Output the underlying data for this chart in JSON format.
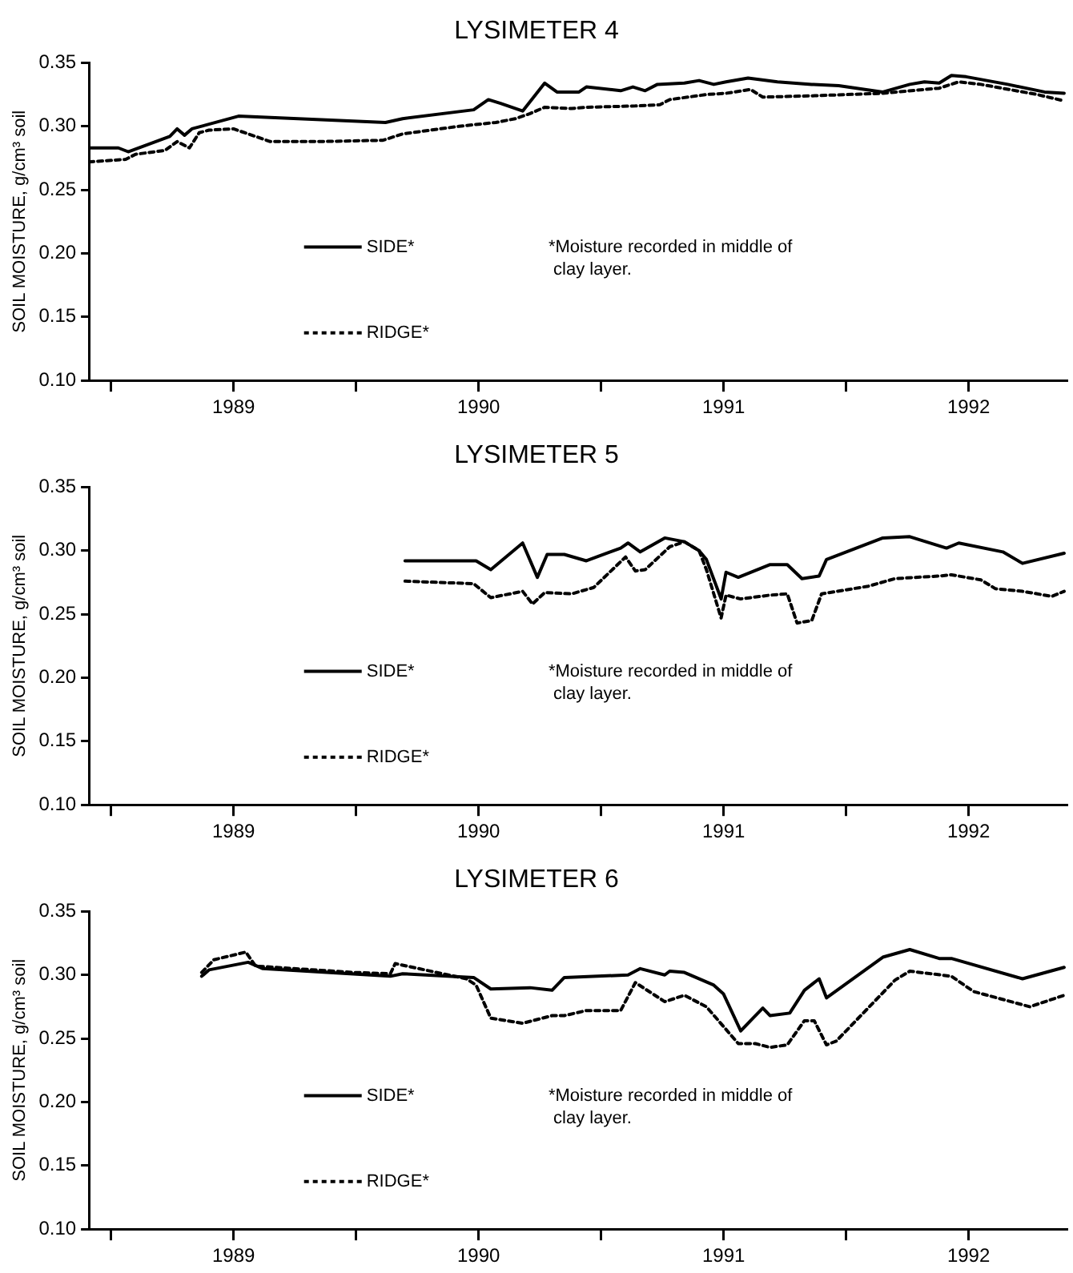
{
  "chart_data": [
    {
      "type": "line",
      "title": "LYSIMETER 4",
      "ylabel": "SOIL MOISTURE, g/cm³ soil",
      "legend": "left",
      "xlim": [
        1988.41,
        1992.4
      ],
      "xticks": [
        {
          "value": 1988.5,
          "label": null
        },
        1989,
        {
          "value": 1989.5,
          "label": null
        },
        1990,
        {
          "value": 1990.5,
          "label": null
        },
        1991,
        {
          "value": 1991.5,
          "label": null
        },
        1992
      ],
      "ylim": [
        0.1,
        0.35
      ],
      "yticks": [
        {
          "value": 0.1,
          "label": "0.10"
        },
        0.15,
        {
          "value": 0.2,
          "label": "0.20"
        },
        0.25,
        {
          "value": 0.3,
          "label": "0.30"
        },
        0.35
      ],
      "annotations": [
        "*Moisture recorded in middle of clay layer."
      ],
      "series": [
        {
          "name": "SIDE*",
          "color": "#000000",
          "line_style": "solid",
          "x": [
            1988.41,
            1988.53,
            1988.57,
            1988.74,
            1988.77,
            1988.8,
            1988.83,
            1989.02,
            1989.62,
            1989.69,
            1989.98,
            1990.04,
            1990.09,
            1990.18,
            1990.27,
            1990.32,
            1990.41,
            1990.44,
            1990.58,
            1990.63,
            1990.68,
            1990.73,
            1990.84,
            1990.9,
            1990.96,
            1991.01,
            1991.1,
            1991.22,
            1991.36,
            1991.47,
            1991.65,
            1991.76,
            1991.82,
            1991.88,
            1991.93,
            1991.99,
            1992.16,
            1992.31,
            1992.39
          ],
          "values": [
            0.283,
            0.283,
            0.28,
            0.292,
            0.298,
            0.293,
            0.298,
            0.308,
            0.303,
            0.306,
            0.313,
            0.321,
            0.318,
            0.312,
            0.334,
            0.327,
            0.327,
            0.331,
            0.328,
            0.331,
            0.328,
            0.333,
            0.334,
            0.336,
            0.333,
            0.335,
            0.338,
            0.335,
            0.333,
            0.332,
            0.327,
            0.333,
            0.335,
            0.334,
            0.34,
            0.339,
            0.333,
            0.327,
            0.326
          ]
        },
        {
          "name": "RIDGE*",
          "color": "#000000",
          "line_style": "dotted",
          "x": [
            1988.41,
            1988.56,
            1988.6,
            1988.72,
            1988.77,
            1988.82,
            1988.86,
            1988.9,
            1989.0,
            1989.06,
            1989.15,
            1989.35,
            1989.61,
            1989.69,
            1989.92,
            1990.07,
            1990.15,
            1990.21,
            1990.27,
            1990.38,
            1990.44,
            1990.64,
            1990.74,
            1990.78,
            1990.93,
            1991.01,
            1991.11,
            1991.16,
            1991.36,
            1991.65,
            1991.88,
            1991.96,
            1992.05,
            1992.28,
            1992.39
          ],
          "values": [
            0.272,
            0.274,
            0.278,
            0.281,
            0.288,
            0.283,
            0.295,
            0.297,
            0.298,
            0.294,
            0.288,
            0.288,
            0.289,
            0.294,
            0.3,
            0.303,
            0.306,
            0.31,
            0.315,
            0.314,
            0.315,
            0.316,
            0.317,
            0.321,
            0.325,
            0.326,
            0.329,
            0.323,
            0.324,
            0.326,
            0.33,
            0.335,
            0.333,
            0.325,
            0.32
          ]
        }
      ]
    },
    {
      "type": "line",
      "title": "LYSIMETER 5",
      "ylabel": "SOIL MOISTURE, g/cm³ soil",
      "legend": "left",
      "xlim": [
        1988.41,
        1992.4
      ],
      "xticks": [
        {
          "value": 1988.5,
          "label": null
        },
        1989,
        {
          "value": 1989.5,
          "label": null
        },
        1990,
        {
          "value": 1990.5,
          "label": null
        },
        1991,
        {
          "value": 1991.5,
          "label": null
        },
        1992
      ],
      "ylim": [
        0.1,
        0.35
      ],
      "yticks": [
        {
          "value": 0.1,
          "label": "0.10"
        },
        0.15,
        {
          "value": 0.2,
          "label": "0.20"
        },
        0.25,
        {
          "value": 0.3,
          "label": "0.30"
        },
        0.35
      ],
      "annotations": [
        "*Moisture recorded in middle of clay layer."
      ],
      "series": [
        {
          "name": "SIDE*",
          "color": "#000000",
          "line_style": "solid",
          "x": [
            1989.7,
            1989.99,
            1990.05,
            1990.18,
            1990.24,
            1990.28,
            1990.35,
            1990.44,
            1990.58,
            1990.61,
            1990.66,
            1990.76,
            1990.84,
            1990.9,
            1990.93,
            1990.99,
            1991.01,
            1991.06,
            1991.19,
            1991.26,
            1991.32,
            1991.39,
            1991.42,
            1991.65,
            1991.76,
            1991.91,
            1991.96,
            1992.14,
            1992.22,
            1992.39
          ],
          "values": [
            0.292,
            0.292,
            0.285,
            0.306,
            0.279,
            0.297,
            0.297,
            0.292,
            0.302,
            0.306,
            0.299,
            0.31,
            0.307,
            0.3,
            0.293,
            0.262,
            0.283,
            0.279,
            0.289,
            0.289,
            0.278,
            0.28,
            0.293,
            0.31,
            0.311,
            0.302,
            0.306,
            0.299,
            0.29,
            0.298
          ]
        },
        {
          "name": "RIDGE*",
          "color": "#000000",
          "line_style": "dotted",
          "x": [
            1989.7,
            1989.98,
            1990.05,
            1990.18,
            1990.22,
            1990.27,
            1990.38,
            1990.47,
            1990.6,
            1990.64,
            1990.68,
            1990.78,
            1990.84,
            1990.9,
            1990.93,
            1990.99,
            1991.01,
            1991.07,
            1991.19,
            1991.26,
            1991.3,
            1991.36,
            1991.4,
            1991.59,
            1991.7,
            1991.88,
            1991.93,
            1992.05,
            1992.11,
            1992.22,
            1992.34,
            1992.39
          ],
          "values": [
            0.276,
            0.274,
            0.263,
            0.268,
            0.258,
            0.267,
            0.266,
            0.271,
            0.295,
            0.284,
            0.285,
            0.303,
            0.307,
            0.3,
            0.285,
            0.247,
            0.265,
            0.262,
            0.265,
            0.266,
            0.243,
            0.245,
            0.266,
            0.272,
            0.278,
            0.28,
            0.281,
            0.277,
            0.27,
            0.268,
            0.264,
            0.268
          ]
        }
      ]
    },
    {
      "type": "line",
      "title": "LYSIMETER 6",
      "ylabel": "SOIL MOISTURE, g/cm³ soil",
      "legend": "left",
      "xlim": [
        1988.41,
        1992.4
      ],
      "xticks": [
        {
          "value": 1988.5,
          "label": null
        },
        1989,
        {
          "value": 1989.5,
          "label": null
        },
        1990,
        {
          "value": 1990.5,
          "label": null
        },
        1991,
        {
          "value": 1991.5,
          "label": null
        },
        1992
      ],
      "ylim": [
        0.1,
        0.35
      ],
      "yticks": [
        {
          "value": 0.1,
          "label": "0.10"
        },
        0.15,
        {
          "value": 0.2,
          "label": "0.20"
        },
        0.25,
        {
          "value": 0.3,
          "label": "0.30"
        },
        0.35
      ],
      "annotations": [
        "*Moisture recorded in middle of clay layer."
      ],
      "series": [
        {
          "name": "SIDE*",
          "color": "#000000",
          "line_style": "solid",
          "x": [
            1988.87,
            1988.9,
            1989.06,
            1989.12,
            1989.64,
            1989.69,
            1989.98,
            1990.05,
            1990.21,
            1990.3,
            1990.35,
            1990.61,
            1990.66,
            1990.76,
            1990.78,
            1990.84,
            1990.96,
            1991.0,
            1991.07,
            1991.16,
            1991.19,
            1991.27,
            1991.33,
            1991.39,
            1991.42,
            1991.65,
            1991.76,
            1991.88,
            1991.93,
            1992.22,
            1992.39
          ],
          "values": [
            0.299,
            0.304,
            0.31,
            0.305,
            0.299,
            0.301,
            0.298,
            0.289,
            0.29,
            0.288,
            0.298,
            0.3,
            0.305,
            0.3,
            0.303,
            0.302,
            0.292,
            0.285,
            0.256,
            0.274,
            0.268,
            0.27,
            0.288,
            0.297,
            0.282,
            0.314,
            0.32,
            0.313,
            0.313,
            0.297,
            0.306
          ]
        },
        {
          "name": "RIDGE*",
          "color": "#000000",
          "line_style": "dotted",
          "x": [
            1988.87,
            1988.92,
            1989.05,
            1989.09,
            1989.49,
            1989.64,
            1989.66,
            1989.78,
            1989.95,
            1989.99,
            1990.05,
            1990.18,
            1990.3,
            1990.35,
            1990.44,
            1990.58,
            1990.64,
            1990.76,
            1990.84,
            1990.93,
            1991.06,
            1991.13,
            1991.19,
            1991.26,
            1991.33,
            1991.37,
            1991.42,
            1991.46,
            1991.7,
            1991.76,
            1991.93,
            1992.02,
            1992.25,
            1992.39
          ],
          "values": [
            0.302,
            0.312,
            0.318,
            0.307,
            0.302,
            0.301,
            0.309,
            0.304,
            0.297,
            0.292,
            0.266,
            0.262,
            0.268,
            0.268,
            0.272,
            0.272,
            0.294,
            0.279,
            0.284,
            0.275,
            0.246,
            0.246,
            0.243,
            0.245,
            0.264,
            0.264,
            0.245,
            0.248,
            0.296,
            0.303,
            0.299,
            0.287,
            0.275,
            0.284
          ]
        }
      ]
    }
  ]
}
